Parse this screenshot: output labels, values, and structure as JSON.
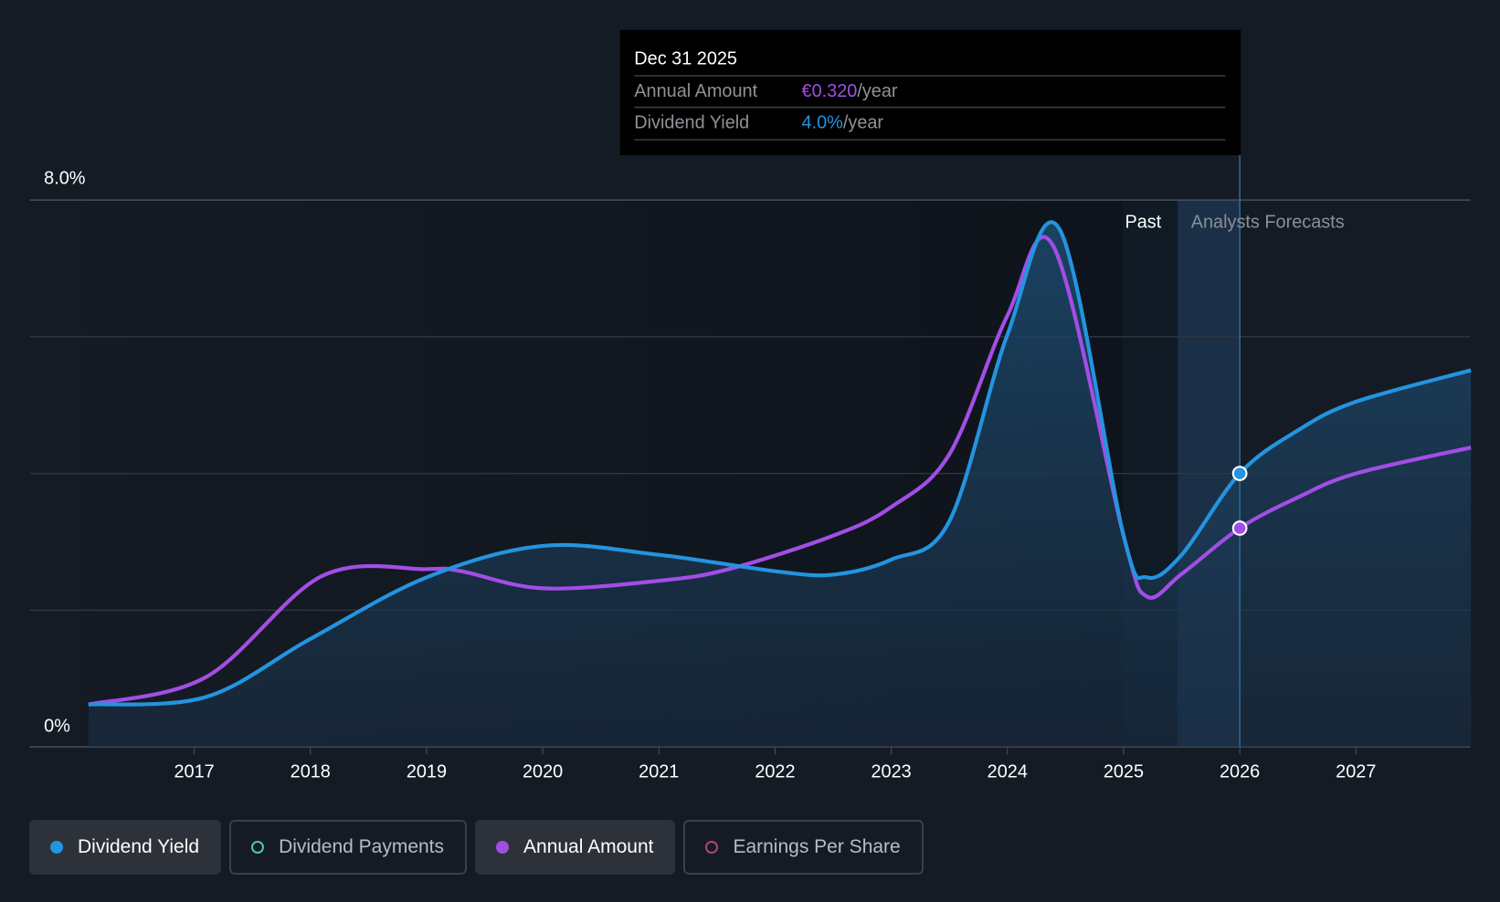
{
  "chart_data": {
    "type": "line",
    "title": "",
    "y_axis": {
      "ticks": [
        "0%",
        "8.0%"
      ],
      "min": 0,
      "max": 8,
      "grid_step": 2
    },
    "x_axis": {
      "ticks": [
        "2017",
        "2018",
        "2019",
        "2020",
        "2021",
        "2022",
        "2023",
        "2024",
        "2025",
        "2026",
        "2027"
      ]
    },
    "regions": {
      "past_label": "Past",
      "forecast_label": "Analysts Forecasts",
      "past_end": 2025.0,
      "highlight_start": 2025.47,
      "forecast_start": 2026.0
    },
    "series": [
      {
        "name": "Dividend Yield",
        "unit": "%",
        "color": "#2394e0",
        "x": [
          2016.09,
          2017.1,
          2018.0,
          2019.0,
          2020.0,
          2021.0,
          2022.0,
          2022.5,
          2023.0,
          2023.5,
          2024.0,
          2024.45,
          2025.0,
          2025.2,
          2025.5,
          2026.0,
          2026.5,
          2027.0,
          2027.99
        ],
        "y": [
          0.62,
          0.73,
          1.58,
          2.48,
          2.94,
          2.81,
          2.57,
          2.52,
          2.74,
          3.3,
          6.03,
          7.57,
          3.09,
          2.48,
          2.81,
          4.0,
          4.63,
          5.05,
          5.51
        ]
      },
      {
        "name": "Annual Amount",
        "unit": "€",
        "color": "#a24ee6",
        "axis_scale": 10,
        "x": [
          2016.09,
          2017.1,
          2018.1,
          2019.0,
          2019.3,
          2020.0,
          2021.0,
          2021.6,
          2022.5,
          2023.0,
          2023.5,
          2024.0,
          2024.4,
          2025.0,
          2025.2,
          2025.5,
          2026.0,
          2026.5,
          2027.0,
          2027.99
        ],
        "y": [
          0.062,
          0.102,
          0.25,
          0.26,
          0.257,
          0.232,
          0.243,
          0.26,
          0.309,
          0.351,
          0.428,
          0.631,
          0.731,
          0.309,
          0.22,
          0.253,
          0.32,
          0.365,
          0.4,
          0.438
        ]
      }
    ],
    "highlight_x": 2026.0
  },
  "tooltip": {
    "date": "Dec 31 2025",
    "rows": [
      {
        "label": "Annual Amount",
        "value": "€0.320",
        "suffix": "/year",
        "color": "#a24ee6"
      },
      {
        "label": "Dividend Yield",
        "value": "4.0%",
        "suffix": "/year",
        "color": "#2394e0"
      }
    ]
  },
  "legend": [
    {
      "label": "Dividend Yield",
      "color": "#2394e0",
      "active": true
    },
    {
      "label": "Dividend Payments",
      "color": "#4fc3b5",
      "active": false
    },
    {
      "label": "Annual Amount",
      "color": "#a24ee6",
      "active": true
    },
    {
      "label": "Earnings Per Share",
      "color": "#b0427a",
      "active": false
    }
  ]
}
